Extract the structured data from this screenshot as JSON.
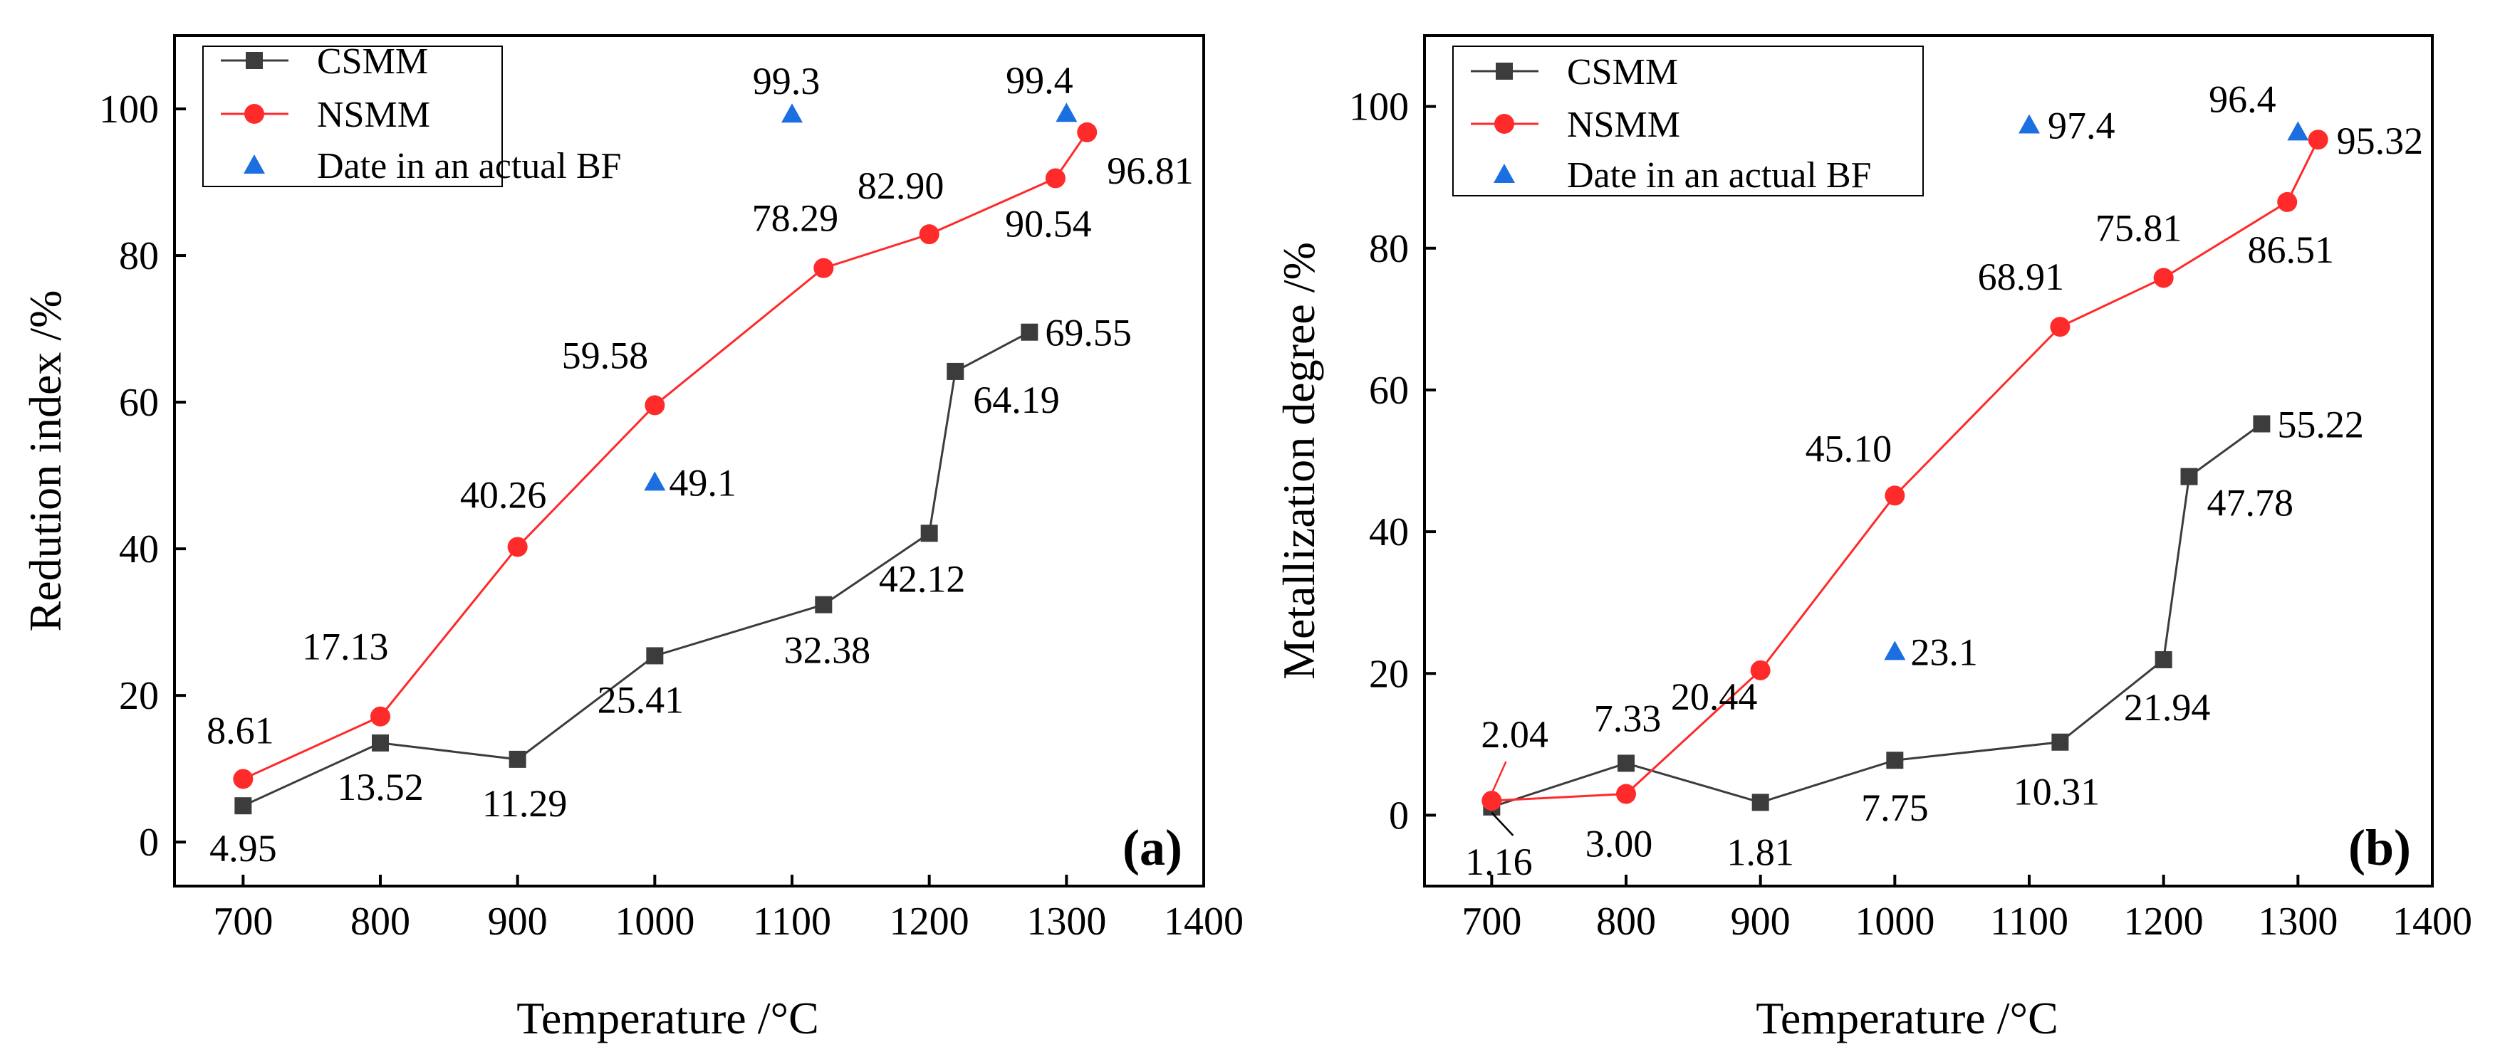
{
  "colors": {
    "CSMM": "#3c3c3c",
    "NSMM": "#ff2a2a",
    "BF": "#1c6fe0"
  },
  "chart_data": [
    {
      "type": "line",
      "panel": "(a)",
      "xlabel": "Temperature /°C",
      "ylabel": "Redution index /%",
      "xlim": [
        650,
        1400
      ],
      "ylim": [
        -6,
        110
      ],
      "xticks": [
        700,
        800,
        900,
        1000,
        1100,
        1200,
        1300,
        1400
      ],
      "yticks": [
        0,
        20,
        40,
        60,
        80,
        100
      ],
      "grid": false,
      "legend_position": "top-left",
      "series": [
        {
          "name": "CSMM",
          "marker": "square",
          "x": [
            700,
            800,
            900,
            1000,
            1123,
            1200,
            1219,
            1273
          ],
          "y": [
            4.95,
            13.52,
            11.29,
            25.41,
            32.38,
            42.12,
            64.19,
            69.55
          ],
          "labels": [
            "4.95",
            "13.52",
            "11.29",
            "25.41",
            "32.38",
            "42.12",
            "64.19",
            "69.55"
          ]
        },
        {
          "name": "NSMM",
          "marker": "circle",
          "x": [
            700,
            800,
            900,
            1000,
            1123,
            1200,
            1292,
            1315
          ],
          "y": [
            8.61,
            17.13,
            40.26,
            59.58,
            78.29,
            82.9,
            90.54,
            96.81
          ],
          "labels": [
            "8.61",
            "17.13",
            "40.26",
            "59.58",
            "78.29",
            "82.90",
            "90.54",
            "96.81"
          ]
        },
        {
          "name": "Date in  an actual BF",
          "marker": "triangle",
          "x": [
            1000,
            1100,
            1300
          ],
          "y": [
            49.1,
            99.3,
            99.4
          ],
          "labels": [
            "49.1",
            "99.3",
            "99.4"
          ]
        }
      ]
    },
    {
      "type": "line",
      "panel": "(b)",
      "xlabel": "Temperature /°C",
      "ylabel": "Metallization degree /%",
      "xlim": [
        650,
        1400
      ],
      "ylim": [
        -10,
        110
      ],
      "xticks": [
        700,
        800,
        900,
        1000,
        1100,
        1200,
        1300,
        1400
      ],
      "yticks": [
        0,
        20,
        40,
        60,
        80,
        100
      ],
      "grid": false,
      "legend_position": "top-left",
      "series": [
        {
          "name": "CSMM",
          "marker": "square",
          "x": [
            700,
            800,
            900,
            1000,
            1123,
            1200,
            1219,
            1273
          ],
          "y": [
            1.16,
            7.33,
            1.81,
            7.75,
            10.31,
            21.94,
            47.78,
            55.22
          ],
          "labels": [
            "1.16",
            "7.33",
            "1.81",
            "7.75",
            "10.31",
            "21.94",
            "47.78",
            "55.22"
          ]
        },
        {
          "name": "NSMM",
          "marker": "circle",
          "x": [
            700,
            800,
            900,
            1000,
            1123,
            1200,
            1292,
            1315
          ],
          "y": [
            2.04,
            3.0,
            20.44,
            45.1,
            68.91,
            75.81,
            86.51,
            95.32
          ],
          "labels": [
            "2.04",
            "3.00",
            "20.44",
            "45.10",
            "68.91",
            "75.81",
            "86.51",
            "95.32"
          ]
        },
        {
          "name": "Date in  an actual BF",
          "marker": "triangle",
          "x": [
            1000,
            1100,
            1300
          ],
          "y": [
            23.1,
            97.4,
            96.4
          ],
          "labels": [
            "23.1",
            "97.4",
            "96.4"
          ]
        }
      ]
    }
  ]
}
